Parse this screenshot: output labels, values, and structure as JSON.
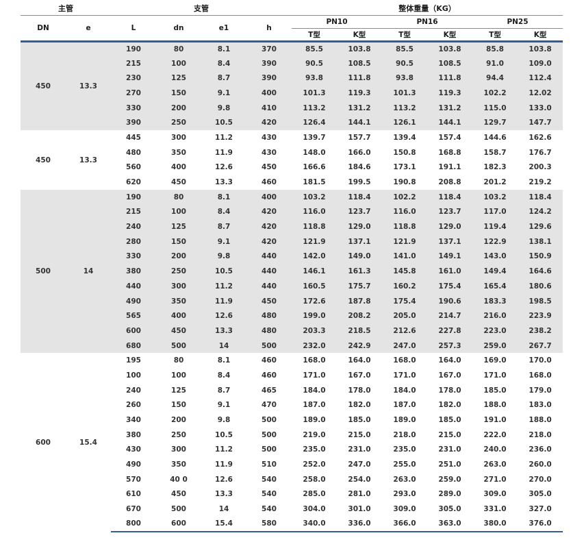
{
  "colors": {
    "accent_blue": "#2f5da4",
    "band_gray": "#e4e4e4",
    "rule_gray": "#8c8c8c",
    "text": "#333333"
  },
  "table": {
    "header": {
      "group_main": "主管",
      "group_branch": "支管",
      "group_weight": "整体重量（KG）",
      "columns": [
        "DN",
        "e",
        "L",
        "dn",
        "e1",
        "h"
      ],
      "pn_groups": [
        "PN10",
        "PN16",
        "PN25"
      ],
      "type_labels": [
        "T型",
        "K型"
      ]
    },
    "cell_names": [
      "L",
      "dn",
      "e1",
      "h",
      "pn10-t",
      "pn10-k",
      "pn16-t",
      "pn16-k",
      "pn25-t",
      "pn25-k"
    ],
    "sections": [
      {
        "dn": "450",
        "e": "13.3",
        "shaded": true,
        "rows": [
          [
            "190",
            "80",
            "8.1",
            "370",
            "85.5",
            "103.8",
            "85.5",
            "103.8",
            "85.8",
            "103.8"
          ],
          [
            "215",
            "100",
            "8.4",
            "390",
            "90.5",
            "108.5",
            "90.5",
            "108.5",
            "91.0",
            "109.0"
          ],
          [
            "230",
            "125",
            "8.7",
            "390",
            "93.8",
            "111.8",
            "93.8",
            "111.8",
            "94.4",
            "112.4"
          ],
          [
            "270",
            "150",
            "9.1",
            "400",
            "101.3",
            "119.3",
            "101.3",
            "119.3",
            "102.2",
            "12.02"
          ],
          [
            "330",
            "200",
            "9.8",
            "410",
            "113.2",
            "131.2",
            "113.2",
            "131.2",
            "115.0",
            "133.0"
          ],
          [
            "390",
            "250",
            "10.5",
            "420",
            "126.4",
            "144.1",
            "126.1",
            "144.1",
            "129.7",
            "147.7"
          ]
        ]
      },
      {
        "dn": "450",
        "e": "13.3",
        "shaded": false,
        "rows": [
          [
            "445",
            "300",
            "11.2",
            "430",
            "139.7",
            "157.7",
            "139.4",
            "157.4",
            "144.6",
            "162.6"
          ],
          [
            "480",
            "350",
            "11.9",
            "430",
            "148.0",
            "166.0",
            "150.8",
            "168.8",
            "158.7",
            "176.7"
          ],
          [
            "560",
            "400",
            "12.6",
            "450",
            "166.6",
            "184.6",
            "173.1",
            "191.1",
            "182.3",
            "200.3"
          ],
          [
            "620",
            "450",
            "13.3",
            "460",
            "181.5",
            "199.5",
            "190.8",
            "208.8",
            "201.2",
            "219.2"
          ]
        ]
      },
      {
        "dn": "500",
        "e": "14",
        "shaded": true,
        "rows": [
          [
            "190",
            "80",
            "8.1",
            "400",
            "103.2",
            "118.4",
            "102.2",
            "118.4",
            "103.2",
            "118.4"
          ],
          [
            "215",
            "100",
            "8.4",
            "420",
            "116.0",
            "123.7",
            "116.0",
            "123.7",
            "117.0",
            "124.2"
          ],
          [
            "240",
            "125",
            "8.7",
            "420",
            "118.8",
            "129.0",
            "118.8",
            "129.0",
            "119.4",
            "129.6"
          ],
          [
            "280",
            "150",
            "9.1",
            "420",
            "121.9",
            "137.1",
            "121.9",
            "137.1",
            "122.9",
            "138.1"
          ],
          [
            "330",
            "200",
            "9.8",
            "440",
            "142.0",
            "149.0",
            "141.0",
            "149.1",
            "143.0",
            "150.9"
          ],
          [
            "380",
            "250",
            "10.5",
            "440",
            "146.1",
            "161.3",
            "145.8",
            "161.0",
            "149.4",
            "164.6"
          ],
          [
            "440",
            "300",
            "11.2",
            "440",
            "160.5",
            "175.7",
            "160.2",
            "175.4",
            "165.4",
            "180.6"
          ],
          [
            "490",
            "350",
            "11.9",
            "450",
            "172.6",
            "187.8",
            "175.4",
            "190.6",
            "183.3",
            "198.5"
          ],
          [
            "565",
            "400",
            "12.6",
            "480",
            "199.0",
            "208.2",
            "205.0",
            "214.7",
            "216.0",
            "223.9"
          ],
          [
            "600",
            "450",
            "13.3",
            "480",
            "203.3",
            "218.5",
            "212.6",
            "227.8",
            "223.0",
            "238.2"
          ],
          [
            "680",
            "500",
            "14",
            "500",
            "232.0",
            "242.9",
            "247.0",
            "257.3",
            "259.0",
            "267.7"
          ]
        ]
      },
      {
        "dn": "600",
        "e": "15.4",
        "shaded": false,
        "rows": [
          [
            "195",
            "80",
            "8.1",
            "460",
            "168.0",
            "164.0",
            "168.0",
            "164.0",
            "169.0",
            "170.0"
          ],
          [
            "100",
            "100",
            "8.4",
            "460",
            "171.0",
            "167.0",
            "171.0",
            "167.0",
            "171.0",
            "168.0"
          ],
          [
            "240",
            "125",
            "8.7",
            "465",
            "184.0",
            "178.0",
            "184.0",
            "178.0",
            "185.0",
            "179.0"
          ],
          [
            "260",
            "150",
            "9.1",
            "470",
            "187.0",
            "182.0",
            "187.0",
            "182.0",
            "188.0",
            "183.0"
          ],
          [
            "340",
            "200",
            "9.8",
            "500",
            "189.0",
            "185.0",
            "189.0",
            "185.0",
            "191.0",
            "188.0"
          ],
          [
            "380",
            "250",
            "10.5",
            "500",
            "219.0",
            "215.0",
            "218.0",
            "215.0",
            "222.0",
            "218.0"
          ],
          [
            "430",
            "300",
            "11.2",
            "500",
            "235.0",
            "231.0",
            "235.0",
            "231.0",
            "240.0",
            "236.0"
          ],
          [
            "490",
            "350",
            "11.9",
            "510",
            "252.0",
            "247.0",
            "255.0",
            "251.0",
            "263.0",
            "260.0"
          ],
          [
            "570",
            "40 0",
            "12.6",
            "540",
            "258.0",
            "254.0",
            "263.0",
            "259.0",
            "271.0",
            "270.0"
          ],
          [
            "610",
            "450",
            "13.3",
            "540",
            "285.0",
            "281.0",
            "293.0",
            "289.0",
            "309.0",
            "305.0"
          ],
          [
            "670",
            "500",
            "14",
            "540",
            "304.0",
            "301.0",
            "309.0",
            "305.0",
            "331.0",
            "327.0"
          ],
          [
            "800",
            "600",
            "15.4",
            "580",
            "340.0",
            "336.0",
            "366.0",
            "363.0",
            "380.0",
            "376.0"
          ]
        ]
      }
    ]
  }
}
